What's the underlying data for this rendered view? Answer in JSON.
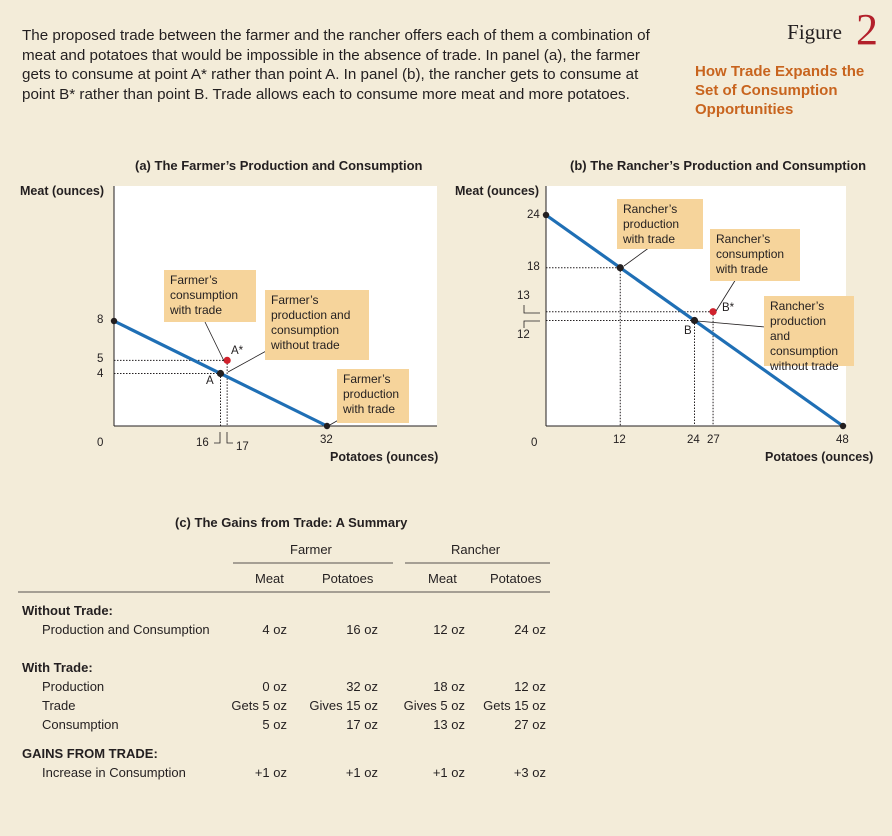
{
  "caption": "The proposed trade between the farmer and the rancher offers each of them a combination of meat and potatoes that would be impossible in the absence of trade. In panel (a), the farmer gets to consume at point A* rather than point A. In panel (b), the rancher gets to consume at point B* rather than point B. Trade allows each to consume more meat and more potatoes.",
  "figure": {
    "word": "Figure",
    "number": "2",
    "title": "How Trade Expands the Set of Consumption Opportunities"
  },
  "chart_data": [
    {
      "type": "line",
      "title": "(a) The Farmer’s Production and Consumption",
      "xlabel": "Potatoes (ounces)",
      "ylabel": "Meat (ounces)",
      "xlim": [
        0,
        48
      ],
      "ylim": [
        0,
        8
      ],
      "series": [
        {
          "x": [
            0,
            32
          ],
          "y": [
            8,
            0
          ]
        }
      ],
      "points": [
        {
          "label": "A",
          "x": 16,
          "y": 4
        },
        {
          "label": "A*",
          "x": 17,
          "y": 5
        }
      ],
      "xticks": [
        "0",
        "16",
        "17",
        "32"
      ],
      "yticks": [
        "8",
        "5",
        "4"
      ],
      "annotations": [
        "Farmer’s consumption with trade",
        "Farmer’s production and consumption without trade",
        "Farmer’s production with trade"
      ]
    },
    {
      "type": "line",
      "title": "(b) The Rancher’s Production and Consumption",
      "xlabel": "Potatoes (ounces)",
      "ylabel": "Meat (ounces)",
      "xlim": [
        0,
        48
      ],
      "ylim": [
        0,
        24
      ],
      "series": [
        {
          "x": [
            0,
            48
          ],
          "y": [
            24,
            0
          ]
        }
      ],
      "points": [
        {
          "label": "",
          "x": 12,
          "y": 18
        },
        {
          "label": "B",
          "x": 24,
          "y": 12
        },
        {
          "label": "B*",
          "x": 27,
          "y": 13
        }
      ],
      "xticks": [
        "0",
        "12",
        "24",
        "27",
        "48"
      ],
      "yticks": [
        "24",
        "18",
        "13",
        "12",
        "0"
      ],
      "annotations": [
        "Rancher’s production with trade",
        "Rancher’s consumption with trade",
        "Rancher’s production and consumption without trade"
      ]
    }
  ],
  "summary": {
    "title": "(c) The Gains from Trade: A Summary",
    "group_farmer": "Farmer",
    "group_rancher": "Rancher",
    "col_meat": "Meat",
    "col_potatoes": "Potatoes",
    "without_trade": "Without Trade:",
    "with_trade": "With Trade:",
    "gains": "GAINS FROM TRADE:",
    "rows": {
      "pc": {
        "label": "Production and Consumption",
        "v": [
          "4 oz",
          "16 oz",
          "12 oz",
          "24 oz"
        ]
      },
      "prod": {
        "label": "Production",
        "v": [
          "0 oz",
          "32 oz",
          "18 oz",
          "12 oz"
        ]
      },
      "trade": {
        "label": "Trade",
        "v": [
          "Gets 5 oz",
          "Gives 15 oz",
          "Gives 5 oz",
          "Gets 15 oz"
        ]
      },
      "cons": {
        "label": "Consumption",
        "v": [
          "5 oz",
          "17 oz",
          "13 oz",
          "27 oz"
        ]
      },
      "inc": {
        "label": "Increase in Consumption",
        "v": [
          "+1 oz",
          "+1 oz",
          "+1 oz",
          "+3 oz"
        ]
      }
    }
  },
  "colors": {
    "line": "#1f6fb5",
    "point_red": "#d0222d",
    "point_black": "#231f20",
    "callout": "#f6d49b",
    "background": "#f3ecd9",
    "accent": "#c8641e",
    "figure_number": "#b3202b"
  }
}
